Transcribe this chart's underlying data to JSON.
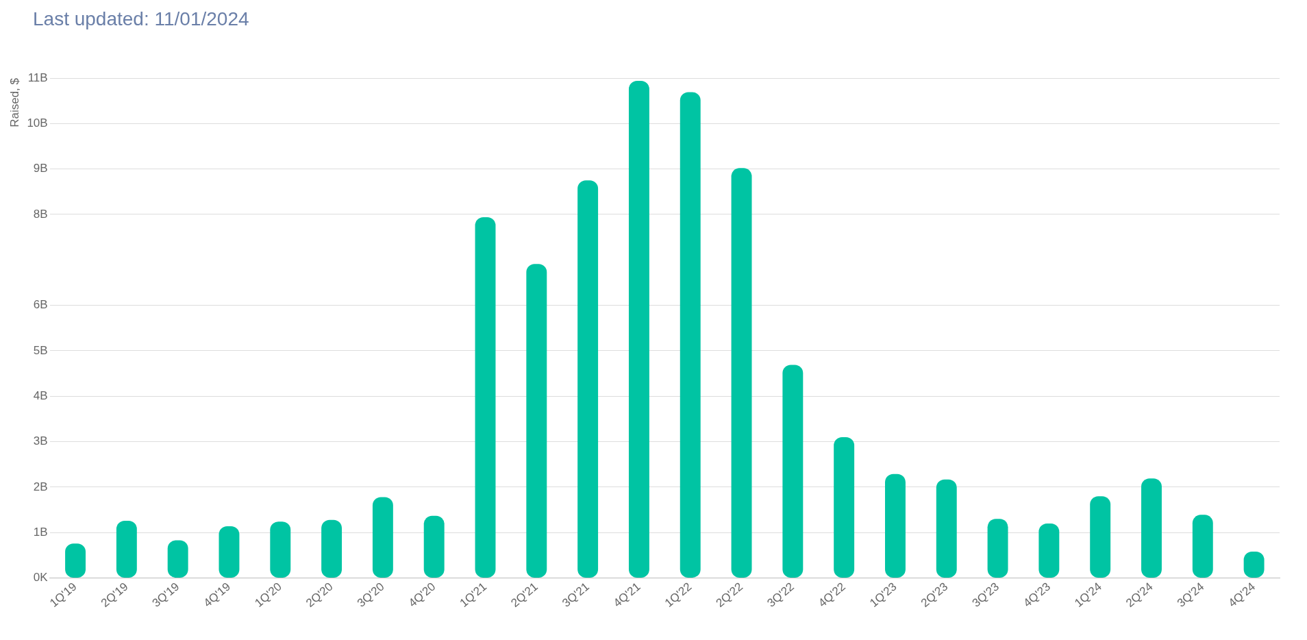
{
  "chart_data": {
    "type": "bar",
    "subtitle": "Last updated: 11/01/2024",
    "ylabel": "Raised, $",
    "categories": [
      "1Q'19",
      "2Q'19",
      "3Q'19",
      "4Q'19",
      "1Q'20",
      "2Q'20",
      "3Q'20",
      "4Q'20",
      "1Q'21",
      "2Q'21",
      "3Q'21",
      "4Q'21",
      "1Q'22",
      "2Q'22",
      "3Q'22",
      "4Q'22",
      "1Q'23",
      "2Q'23",
      "3Q'23",
      "4Q'23",
      "1Q'24",
      "2Q'24",
      "3Q'24",
      "4Q'24"
    ],
    "values": [
      0.76,
      1.26,
      0.83,
      1.14,
      1.24,
      1.28,
      1.78,
      1.37,
      7.94,
      6.91,
      8.75,
      10.94,
      10.69,
      9.02,
      4.69,
      3.1,
      2.29,
      2.17,
      1.3,
      1.2,
      1.8,
      2.19,
      1.39,
      0.58
    ],
    "color": "#00c4a3",
    "ylim": [
      0,
      11
    ],
    "yticks": [
      {
        "value": 0,
        "label": "0K"
      },
      {
        "value": 1,
        "label": "1B"
      },
      {
        "value": 2,
        "label": "2B"
      },
      {
        "value": 3,
        "label": "3B"
      },
      {
        "value": 4,
        "label": "4B"
      },
      {
        "value": 5,
        "label": "5B"
      },
      {
        "value": 6,
        "label": "6B"
      },
      {
        "value": 8,
        "label": "8B"
      },
      {
        "value": 9,
        "label": "9B"
      },
      {
        "value": 10,
        "label": "10B"
      },
      {
        "value": 11,
        "label": "11B"
      }
    ],
    "grid": "y",
    "legend": false
  }
}
